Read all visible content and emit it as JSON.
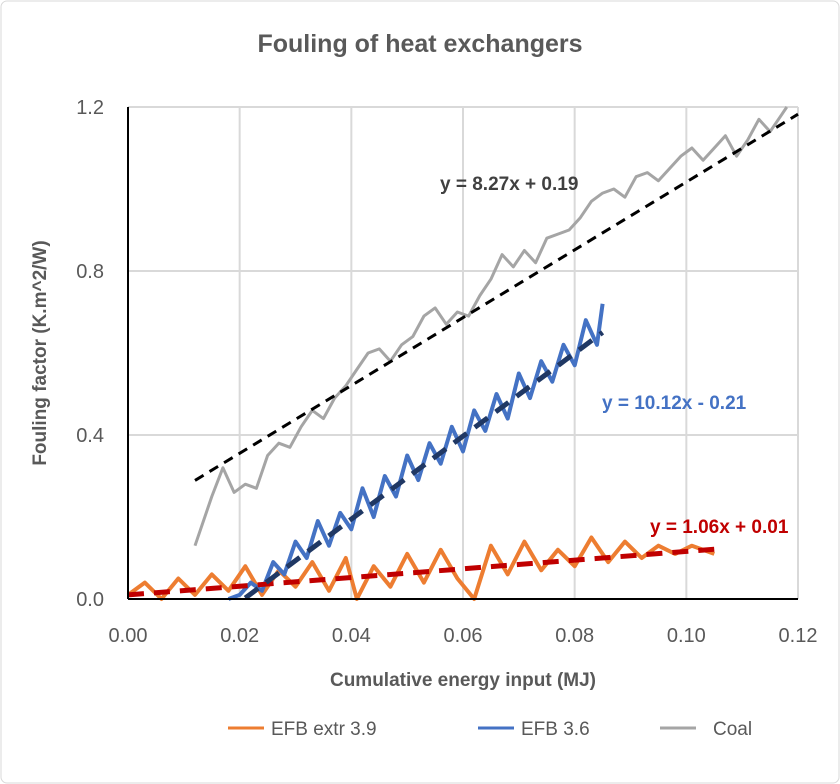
{
  "chart_data": {
    "type": "line",
    "title": "Fouling of heat exchangers",
    "xlabel": "Cumulative energy input (MJ)",
    "ylabel": "Fouling factor (K.m^2/W)",
    "xlim": [
      0,
      0.12
    ],
    "ylim": [
      0,
      1.2
    ],
    "xticks": [
      "0.00",
      "0.02",
      "0.04",
      "0.06",
      "0.08",
      "0.10",
      "0.12"
    ],
    "yticks": [
      "0.0",
      "0.4",
      "0.8",
      "1.2"
    ],
    "grid": true,
    "legend_position": "bottom",
    "series": [
      {
        "name": "EFB extr 3.9",
        "color": "#ED7D31",
        "x": [
          0,
          0.003,
          0.006,
          0.009,
          0.012,
          0.015,
          0.018,
          0.021,
          0.024,
          0.027,
          0.03,
          0.033,
          0.036,
          0.039,
          0.041,
          0.044,
          0.047,
          0.05,
          0.053,
          0.056,
          0.059,
          0.062,
          0.065,
          0.068,
          0.071,
          0.074,
          0.077,
          0.08,
          0.083,
          0.086,
          0.089,
          0.092,
          0.095,
          0.098,
          0.101,
          0.105
        ],
        "y": [
          0.01,
          0.04,
          0.0,
          0.05,
          0.01,
          0.06,
          0.02,
          0.08,
          0.01,
          0.07,
          0.03,
          0.09,
          0.02,
          0.1,
          0.0,
          0.08,
          0.03,
          0.11,
          0.04,
          0.12,
          0.05,
          0.0,
          0.13,
          0.06,
          0.14,
          0.07,
          0.12,
          0.08,
          0.15,
          0.09,
          0.14,
          0.1,
          0.13,
          0.11,
          0.13,
          0.11
        ],
        "trendline": {
          "slope": 1.06,
          "intercept": 0.01,
          "x_range": [
            0,
            0.105
          ],
          "color": "#C00000",
          "label": "y = 1.06x + 0.01"
        }
      },
      {
        "name": "EFB 3.6",
        "color": "#4472C4",
        "x": [
          0.018,
          0.02,
          0.022,
          0.024,
          0.026,
          0.028,
          0.03,
          0.032,
          0.034,
          0.036,
          0.038,
          0.04,
          0.042,
          0.044,
          0.046,
          0.048,
          0.05,
          0.052,
          0.054,
          0.056,
          0.058,
          0.06,
          0.062,
          0.064,
          0.066,
          0.068,
          0.07,
          0.072,
          0.074,
          0.076,
          0.078,
          0.08,
          0.082,
          0.084,
          0.085
        ],
        "y": [
          0.0,
          0.01,
          0.04,
          0.02,
          0.09,
          0.06,
          0.14,
          0.1,
          0.19,
          0.13,
          0.21,
          0.17,
          0.27,
          0.2,
          0.3,
          0.25,
          0.35,
          0.29,
          0.38,
          0.33,
          0.42,
          0.36,
          0.46,
          0.41,
          0.5,
          0.44,
          0.55,
          0.49,
          0.58,
          0.53,
          0.62,
          0.57,
          0.68,
          0.62,
          0.72
        ],
        "trendline": {
          "slope": 10.12,
          "intercept": -0.21,
          "x_range": [
            0.021,
            0.085
          ],
          "color": "#203864",
          "label": "y = 10.12x - 0.21",
          "label_color": "#4472C4"
        }
      },
      {
        "name": "Coal",
        "color": "#A5A5A5",
        "x": [
          0.012,
          0.015,
          0.017,
          0.019,
          0.021,
          0.023,
          0.025,
          0.027,
          0.029,
          0.031,
          0.033,
          0.035,
          0.037,
          0.039,
          0.041,
          0.043,
          0.045,
          0.047,
          0.049,
          0.051,
          0.053,
          0.055,
          0.057,
          0.059,
          0.061,
          0.063,
          0.065,
          0.067,
          0.069,
          0.071,
          0.073,
          0.075,
          0.077,
          0.079,
          0.081,
          0.083,
          0.085,
          0.087,
          0.089,
          0.091,
          0.093,
          0.095,
          0.097,
          0.099,
          0.101,
          0.103,
          0.105,
          0.107,
          0.109,
          0.111,
          0.113,
          0.115,
          0.117,
          0.118
        ],
        "y": [
          0.13,
          0.25,
          0.32,
          0.26,
          0.28,
          0.27,
          0.35,
          0.38,
          0.37,
          0.42,
          0.46,
          0.44,
          0.49,
          0.52,
          0.56,
          0.6,
          0.61,
          0.58,
          0.62,
          0.64,
          0.69,
          0.71,
          0.67,
          0.7,
          0.69,
          0.74,
          0.78,
          0.84,
          0.81,
          0.85,
          0.82,
          0.88,
          0.89,
          0.9,
          0.93,
          0.97,
          0.99,
          1.0,
          0.98,
          1.03,
          1.04,
          1.02,
          1.05,
          1.08,
          1.1,
          1.07,
          1.1,
          1.13,
          1.08,
          1.12,
          1.17,
          1.14,
          1.18,
          1.2
        ],
        "trendline": {
          "slope": 8.27,
          "intercept": 0.19,
          "x_range": [
            0.012,
            0.12
          ],
          "color": "#000000",
          "label": "y = 8.27x + 0.19",
          "label_color": "#404040"
        }
      }
    ]
  }
}
